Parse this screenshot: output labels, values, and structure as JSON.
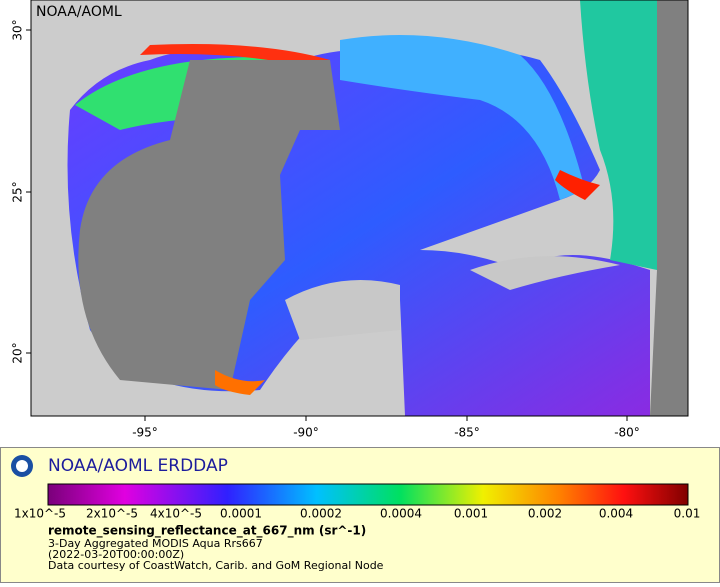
{
  "map": {
    "watermark": "NOAA/AOML",
    "x_ticks": [
      "-95°",
      "-90°",
      "-85°",
      "-80°"
    ],
    "y_ticks": [
      "30°",
      "25°",
      "20°"
    ]
  },
  "legend": {
    "title": "NOAA/AOML ERDDAP",
    "colorbar_labels": [
      "1x10^-5",
      "2x10^-5",
      "4x10^-5",
      "0.0001",
      "0.0002",
      "0.0004",
      "0.001",
      "0.002",
      "0.004",
      "0.01"
    ],
    "variable": "remote_sensing_reflectance_at_667_nm (sr^-1)",
    "lines": [
      "3-Day Aggregated MODIS Aqua Rrs667",
      "(2022-03-20T00:00:00Z)",
      "Data courtesy of CoastWatch, Carib. and GoM Regional Node"
    ]
  }
}
